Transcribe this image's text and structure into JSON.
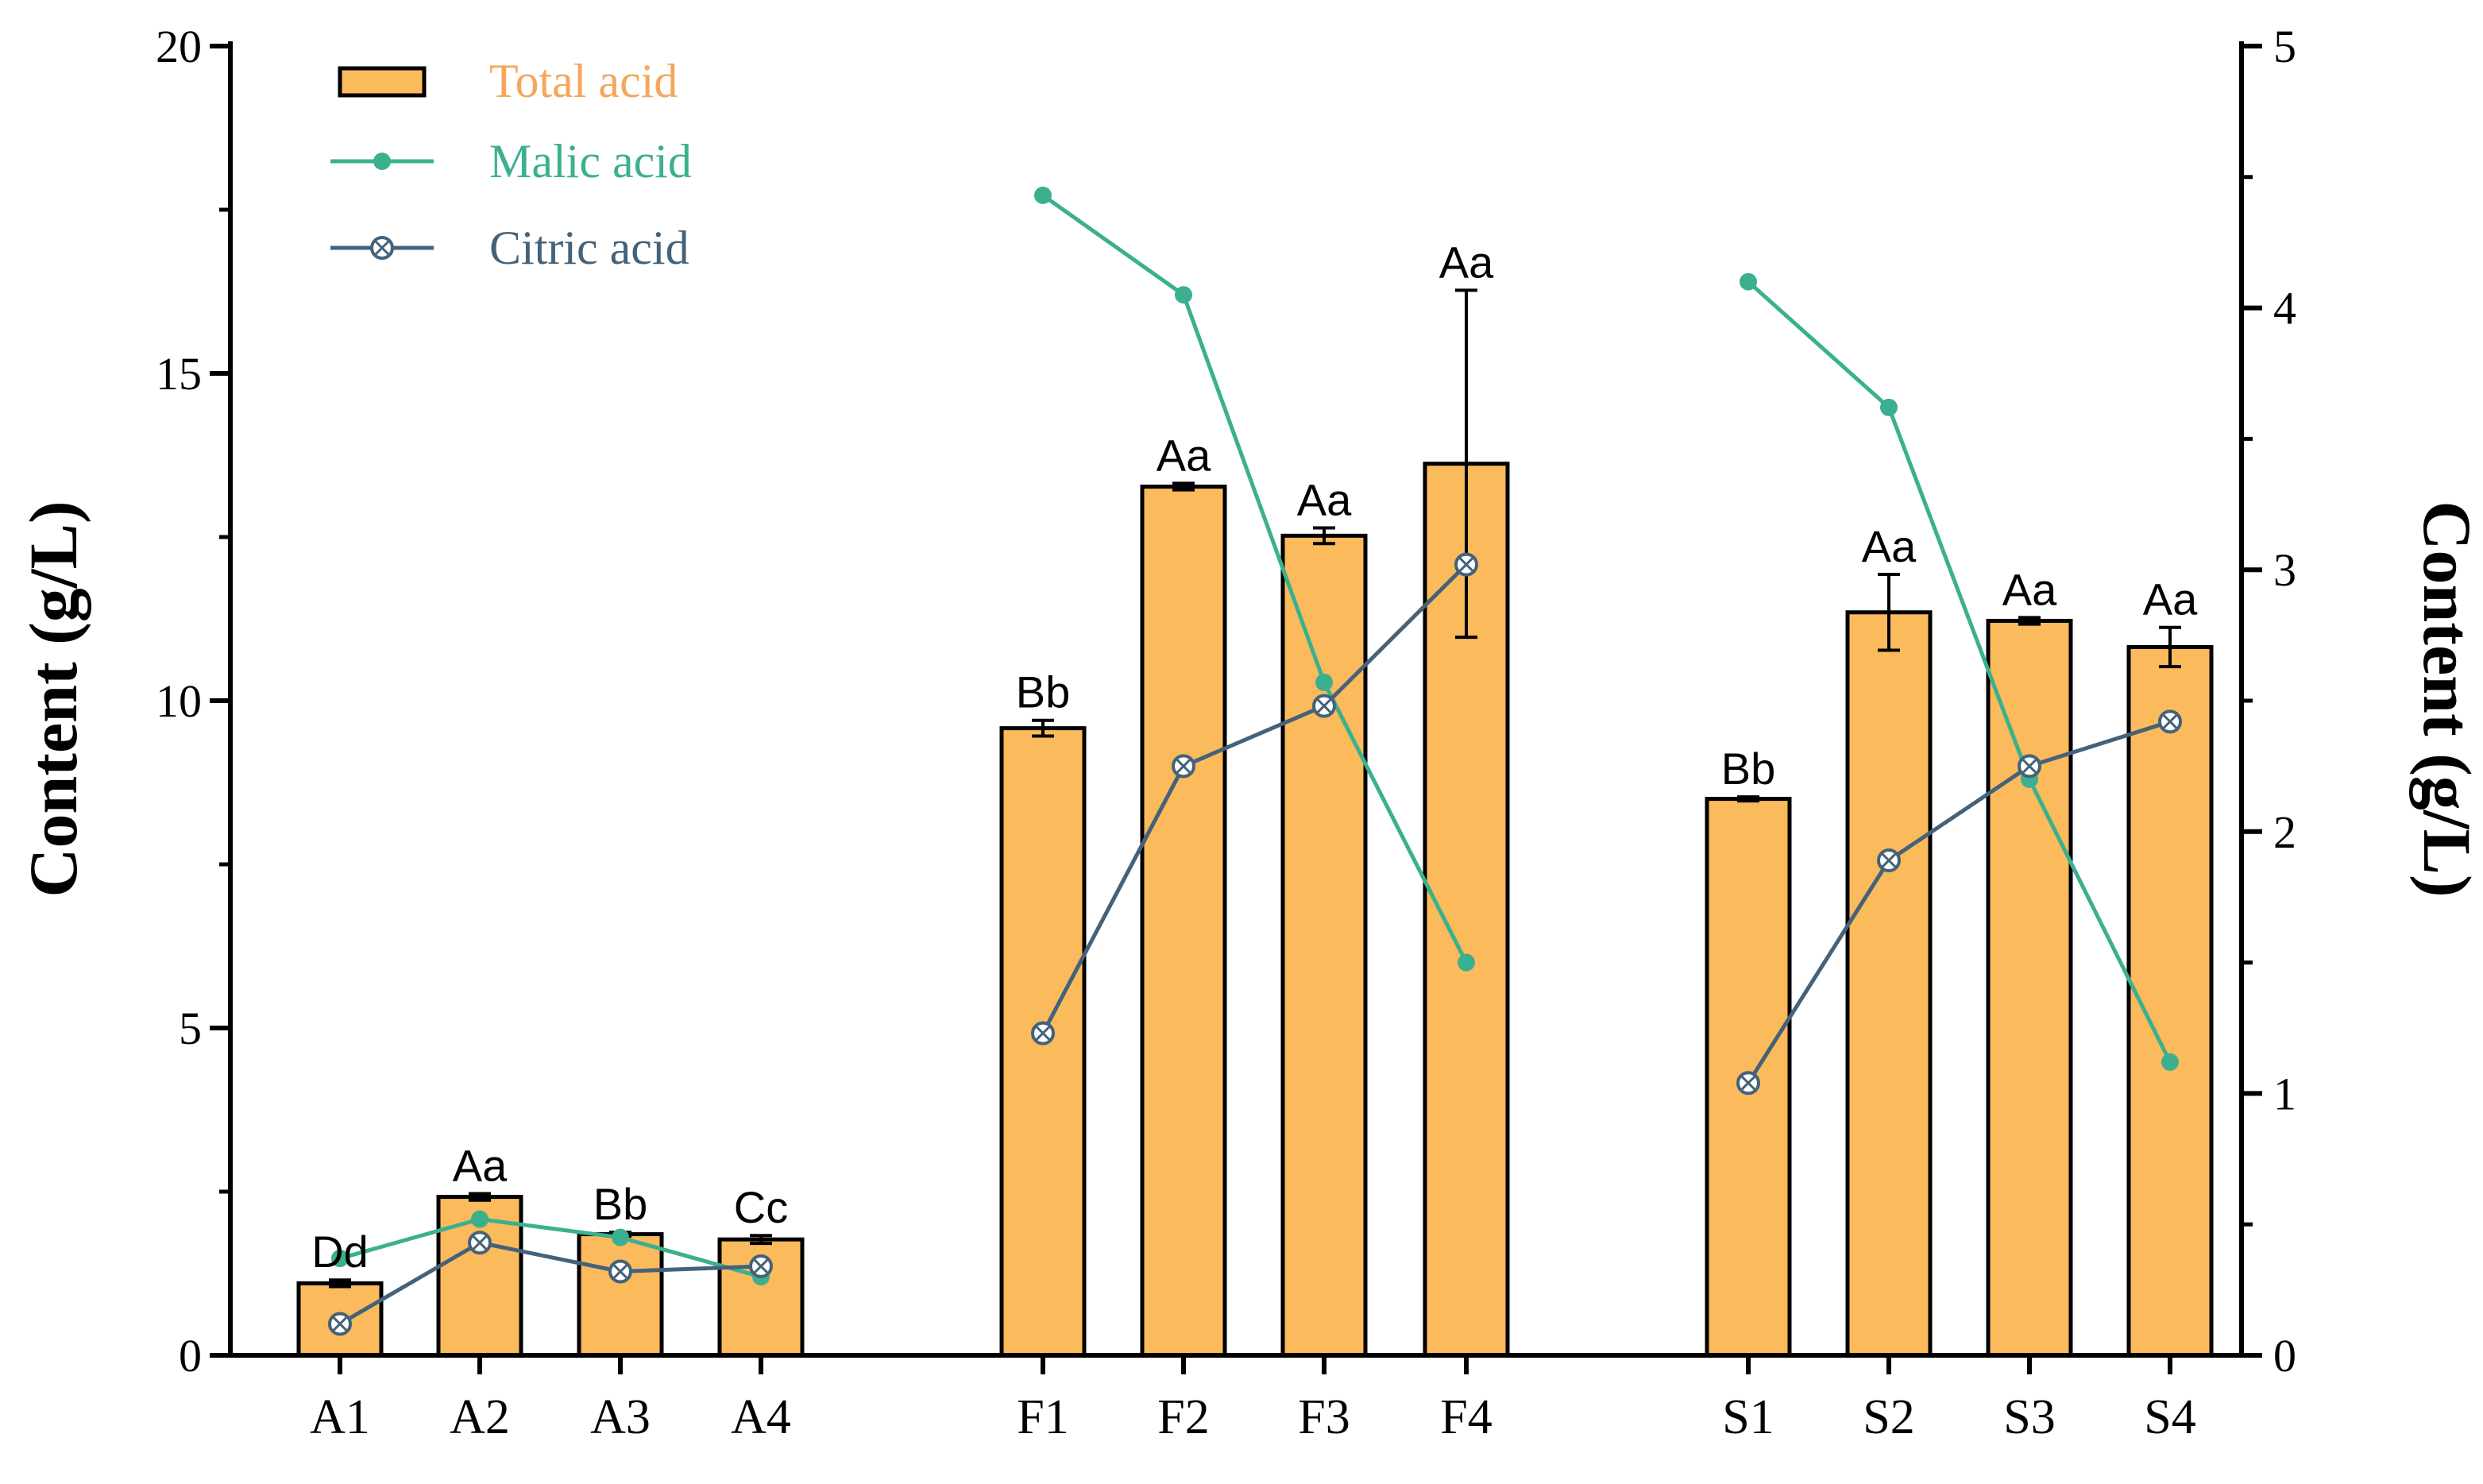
{
  "chart_data": {
    "type": "bar",
    "categories": [
      "A1",
      "A2",
      "A3",
      "A4",
      "F1",
      "F2",
      "F3",
      "F4",
      "S1",
      "S2",
      "S3",
      "S4"
    ],
    "left_axis": {
      "label": "Content (g/L)",
      "ylim": [
        0,
        20
      ],
      "ticks": [
        "0",
        "5",
        "10",
        "15",
        "20"
      ],
      "tick_values": [
        0,
        5,
        10,
        15,
        20
      ]
    },
    "right_axis": {
      "label": "Content (g/L)",
      "ylim": [
        0,
        5
      ],
      "ticks": [
        "0",
        "1",
        "2",
        "3",
        "4",
        "5"
      ],
      "tick_values": [
        0,
        1,
        2,
        3,
        4,
        5
      ]
    },
    "series": [
      {
        "name": "Total acid",
        "kind": "bar",
        "axis": "left",
        "color": "#FBBA5B",
        "legend_color": "#F5A65B",
        "values": [
          1.1,
          2.42,
          1.85,
          1.77,
          9.58,
          13.27,
          12.52,
          13.62,
          8.5,
          11.35,
          11.22,
          10.82
        ],
        "errors": [
          0.05,
          0.05,
          0.03,
          0.06,
          0.12,
          0.05,
          0.12,
          2.65,
          0.03,
          0.58,
          0.05,
          0.3
        ],
        "significance": [
          "Dd",
          "Aa",
          "Bb",
          "Cc",
          "Bb",
          "Aa",
          "Aa",
          "Aa",
          "Bb",
          "Aa",
          "Aa",
          "Aa"
        ]
      },
      {
        "name": "Malic acid",
        "kind": "line",
        "axis": "right",
        "color": "#3BB08F",
        "values": [
          0.37,
          0.52,
          0.45,
          0.3,
          4.43,
          4.05,
          2.57,
          1.5,
          4.1,
          3.62,
          2.2,
          1.12
        ]
      },
      {
        "name": "Citric acid",
        "kind": "line",
        "axis": "right",
        "color": "#44627A",
        "values": [
          0.12,
          0.43,
          0.32,
          0.34,
          1.23,
          2.25,
          2.48,
          3.02,
          1.04,
          1.89,
          2.25,
          2.42
        ]
      }
    ],
    "legend_position": "top-left"
  }
}
